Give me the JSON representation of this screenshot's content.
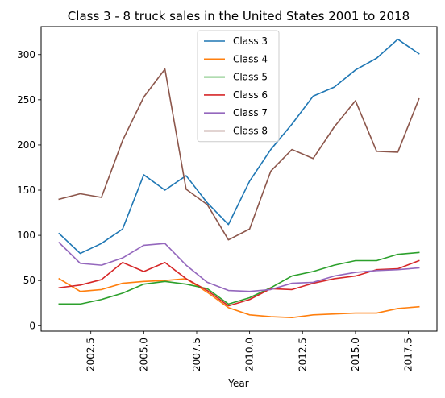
{
  "chart_data": {
    "type": "line",
    "title": "Class 3 - 8 truck sales in the United States 2001 to 2018",
    "xlabel": "Year",
    "ylabel": "",
    "x": [
      2001,
      2002,
      2003,
      2004,
      2005,
      2006,
      2007,
      2008,
      2009,
      2010,
      2011,
      2012,
      2013,
      2014,
      2015,
      2016,
      2017,
      2018
    ],
    "xlim": [
      2000.15,
      2018.85
    ],
    "ylim": [
      -6,
      331
    ],
    "x_ticks": [
      2002.5,
      2005.0,
      2007.5,
      2010.0,
      2012.5,
      2015.0,
      2017.5
    ],
    "x_tick_labels": [
      "2002.5",
      "2005.0",
      "2007.5",
      "2010.0",
      "2012.5",
      "2015.0",
      "2017.5"
    ],
    "y_ticks": [
      0,
      50,
      100,
      150,
      200,
      250,
      300
    ],
    "y_tick_labels": [
      "0",
      "50",
      "100",
      "150",
      "200",
      "250",
      "300"
    ],
    "grid": false,
    "legend_position": "top-center",
    "series": [
      {
        "name": "Class 3",
        "color": "#1f77b4",
        "values": [
          102,
          80,
          91,
          107,
          167,
          150,
          166,
          136,
          112,
          160,
          195,
          223,
          254,
          264,
          283,
          296,
          317,
          301
        ]
      },
      {
        "name": "Class 4",
        "color": "#ff7f0e",
        "values": [
          52,
          38,
          40,
          47,
          49,
          50,
          52,
          37,
          20,
          12,
          10,
          9,
          12,
          13,
          14,
          14,
          19,
          21
        ]
      },
      {
        "name": "Class 5",
        "color": "#2ca02c",
        "values": [
          24,
          24,
          29,
          36,
          46,
          49,
          46,
          41,
          24,
          31,
          42,
          55,
          60,
          67,
          72,
          72,
          79,
          81
        ]
      },
      {
        "name": "Class 6",
        "color": "#d62728",
        "values": [
          42,
          45,
          51,
          70,
          60,
          70,
          52,
          39,
          22,
          29,
          41,
          40,
          47,
          52,
          55,
          62,
          63,
          72
        ]
      },
      {
        "name": "Class 7",
        "color": "#9467bd",
        "values": [
          92,
          69,
          67,
          75,
          89,
          91,
          67,
          48,
          39,
          38,
          40,
          47,
          48,
          55,
          59,
          61,
          62,
          64
        ]
      },
      {
        "name": "Class 8",
        "color": "#8c564b",
        "values": [
          140,
          146,
          142,
          205,
          253,
          284,
          151,
          134,
          95,
          107,
          171,
          195,
          185,
          220,
          249,
          193,
          192,
          251
        ]
      }
    ]
  }
}
